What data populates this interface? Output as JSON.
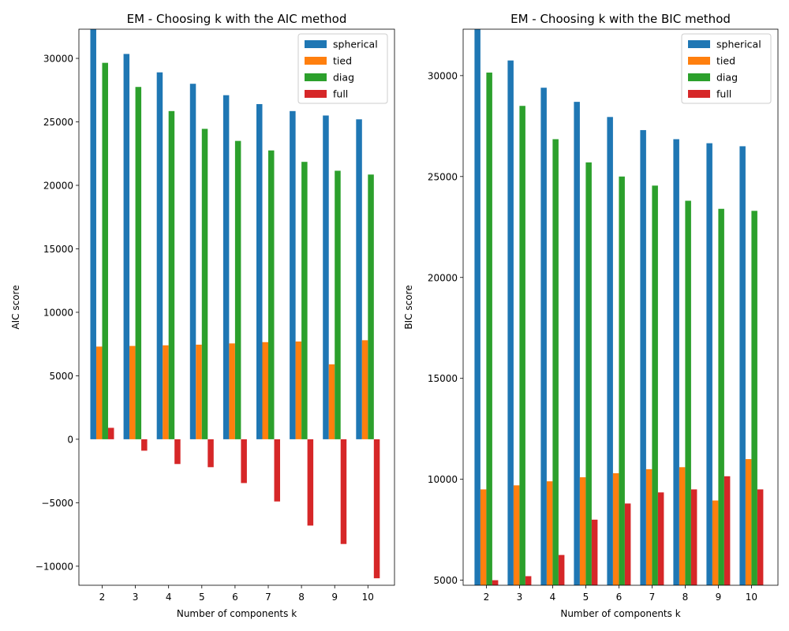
{
  "chart_data": [
    {
      "type": "bar",
      "title": "EM - Choosing k with the AIC method",
      "xlabel": "Number of components k",
      "ylabel": "AIC score",
      "categories": [
        "2",
        "3",
        "4",
        "5",
        "6",
        "7",
        "8",
        "9",
        "10"
      ],
      "ylim": [
        -11500,
        32300
      ],
      "yticks": [
        -10000,
        -5000,
        0,
        5000,
        10000,
        15000,
        20000,
        25000,
        30000
      ],
      "ytick_labels": [
        "−10000",
        "−5000",
        "0",
        "5000",
        "10000",
        "15000",
        "20000",
        "25000",
        "30000"
      ],
      "legend": "top-right",
      "series": [
        {
          "name": "spherical",
          "color": "#1f77b4",
          "values": [
            32300,
            30350,
            28900,
            28000,
            27100,
            26400,
            25850,
            25500,
            25200
          ]
        },
        {
          "name": "tied",
          "color": "#ff7f0e",
          "values": [
            7300,
            7350,
            7400,
            7450,
            7550,
            7650,
            7700,
            5900,
            7800
          ]
        },
        {
          "name": "diag",
          "color": "#2ca02c",
          "values": [
            29650,
            27750,
            25850,
            24450,
            23500,
            22750,
            21850,
            21150,
            20850
          ]
        },
        {
          "name": "full",
          "color": "#d62728",
          "values": [
            900,
            -900,
            -1950,
            -2200,
            -3450,
            -4900,
            -6800,
            -8250,
            -10950
          ]
        }
      ]
    },
    {
      "type": "bar",
      "title": "EM - Choosing k with the BIC method",
      "xlabel": "Number of components k",
      "ylabel": "BIC score",
      "categories": [
        "2",
        "3",
        "4",
        "5",
        "6",
        "7",
        "8",
        "9",
        "10"
      ],
      "ylim": [
        4750,
        32300
      ],
      "yticks": [
        5000,
        10000,
        15000,
        20000,
        25000,
        30000
      ],
      "ytick_labels": [
        "5000",
        "10000",
        "15000",
        "20000",
        "25000",
        "30000"
      ],
      "legend": "top-right",
      "series": [
        {
          "name": "spherical",
          "color": "#1f77b4",
          "values": [
            32300,
            30750,
            29400,
            28700,
            27950,
            27300,
            26850,
            26650,
            26500
          ]
        },
        {
          "name": "tied",
          "color": "#ff7f0e",
          "values": [
            9500,
            9700,
            9900,
            10100,
            10300,
            10500,
            10600,
            8950,
            11000
          ]
        },
        {
          "name": "diag",
          "color": "#2ca02c",
          "values": [
            30150,
            28500,
            26850,
            25700,
            25000,
            24550,
            23800,
            23400,
            23300
          ]
        },
        {
          "name": "full",
          "color": "#d62728",
          "values": [
            5000,
            5200,
            6250,
            8000,
            8800,
            9350,
            9500,
            10150,
            9500
          ]
        }
      ]
    }
  ]
}
